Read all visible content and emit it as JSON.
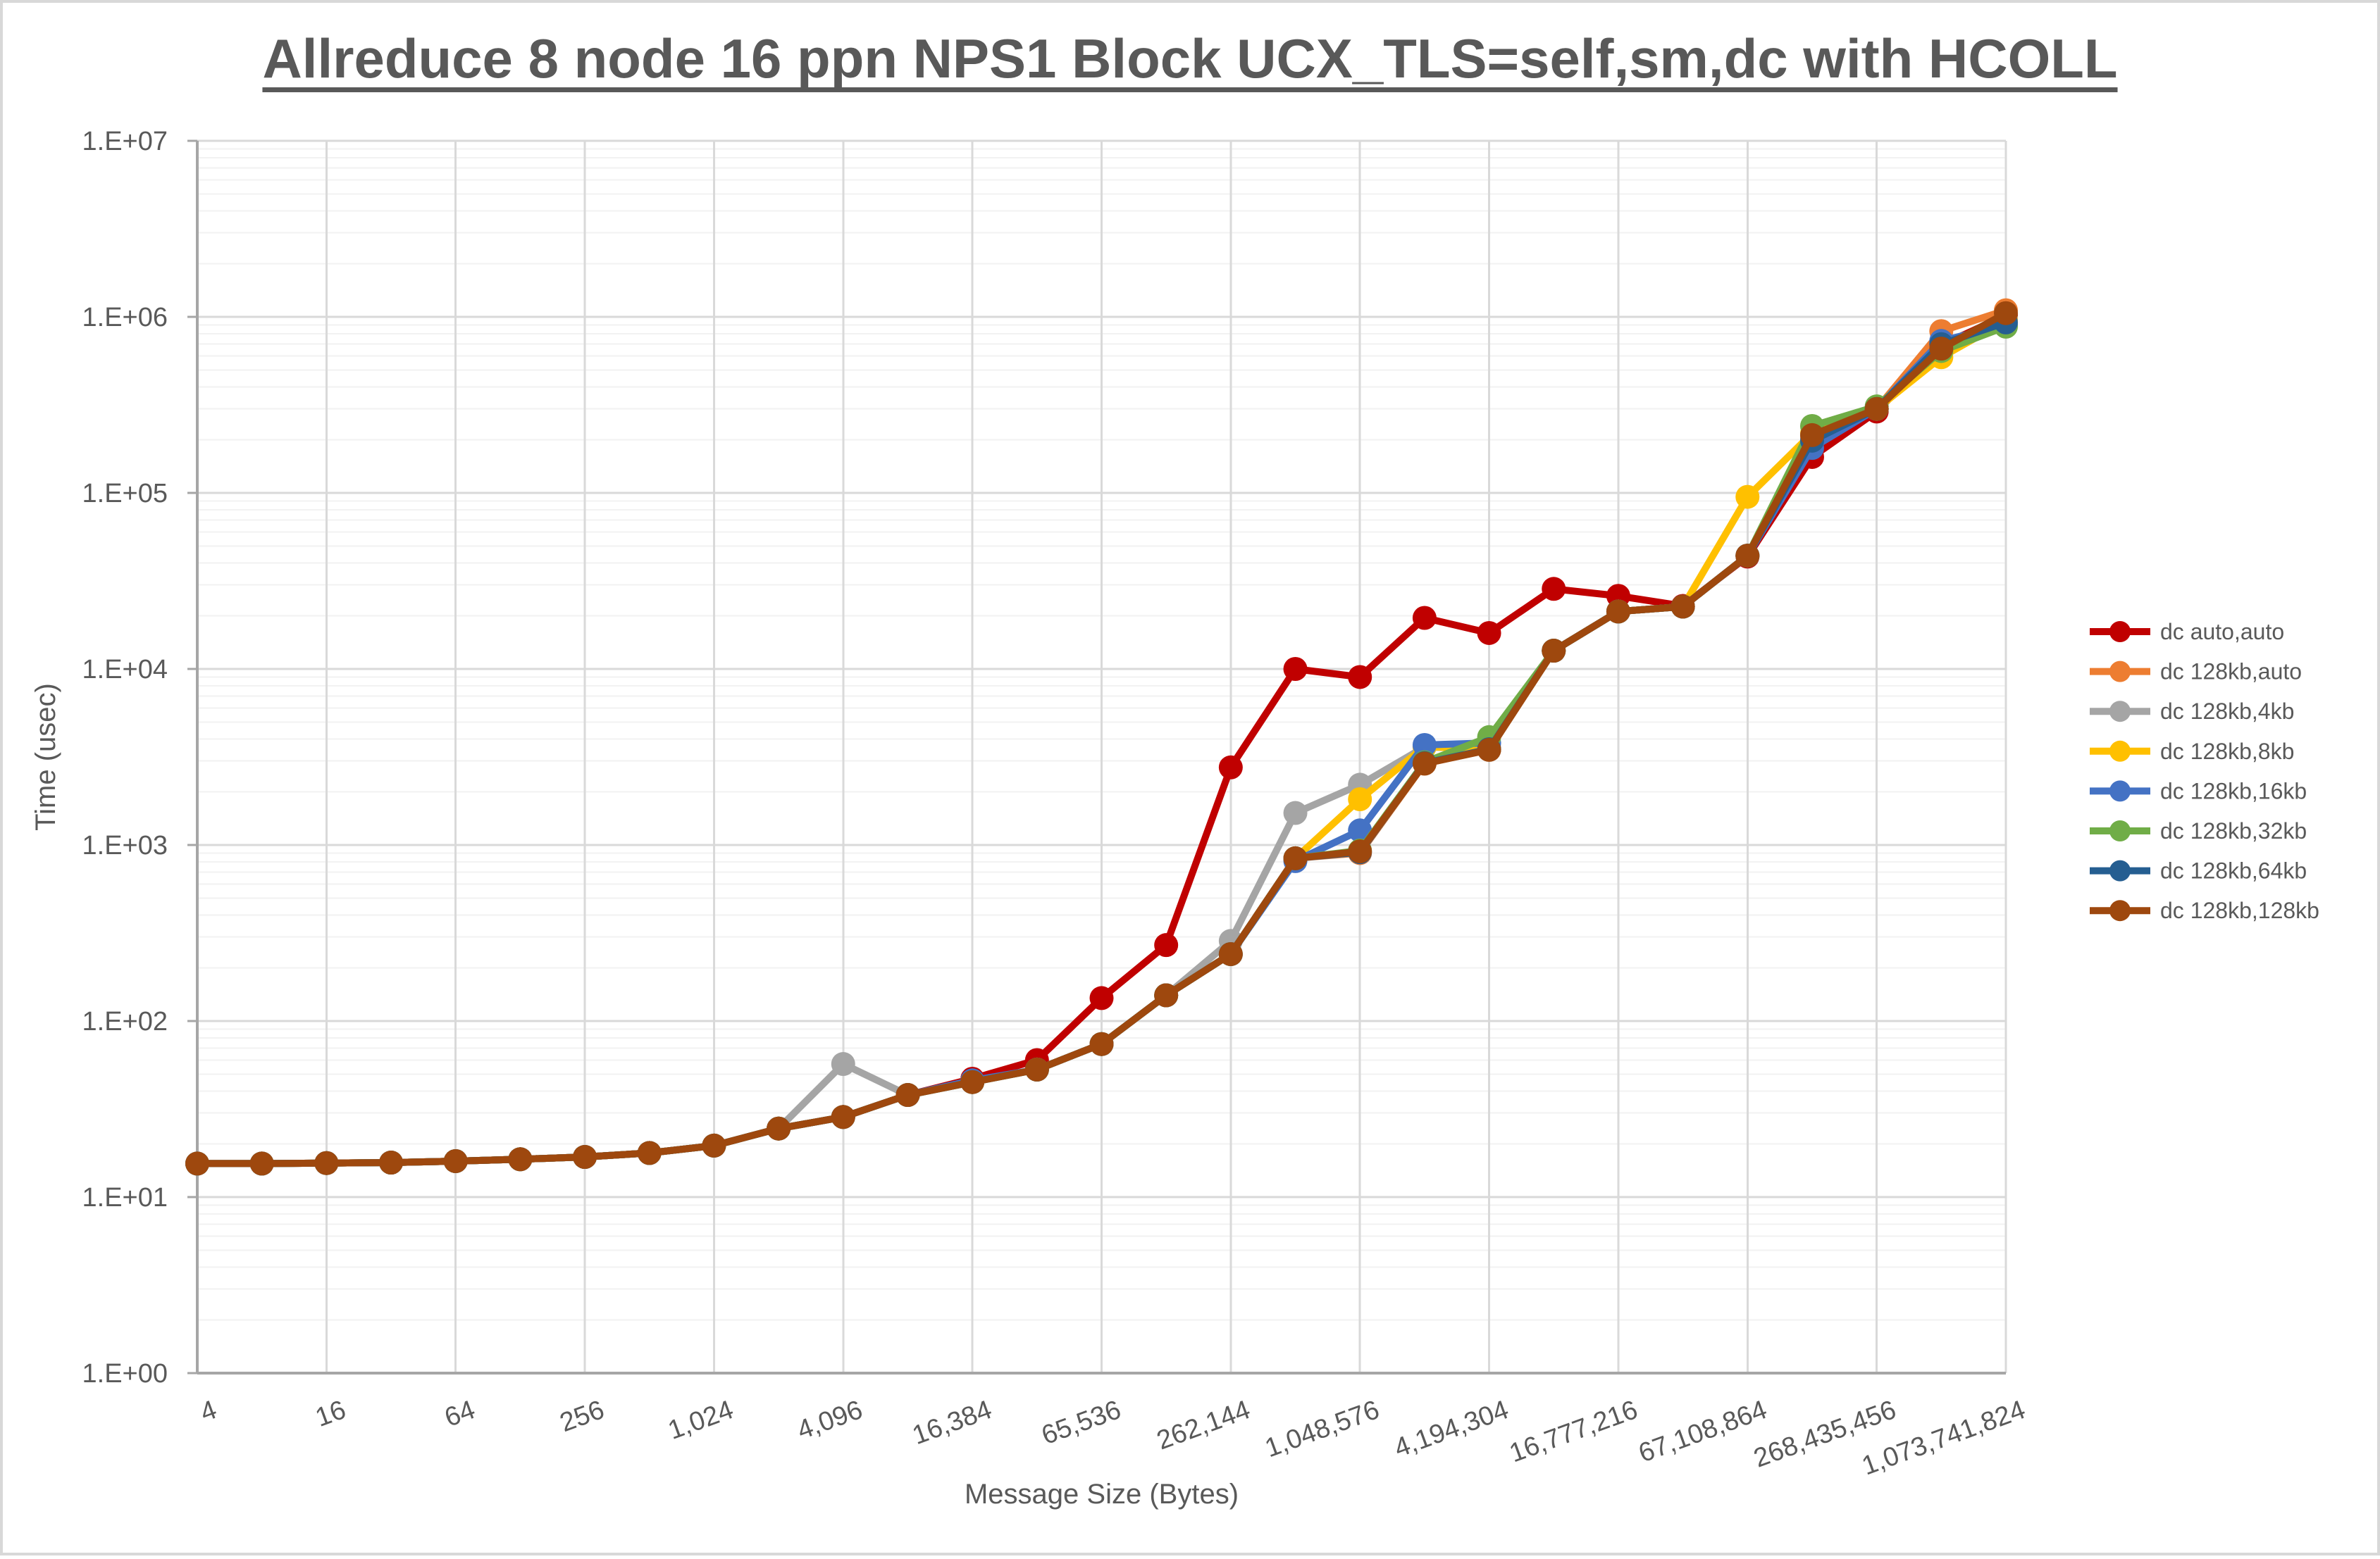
{
  "title": "Allreduce 8 node 16 ppn NPS1 Block UCX_TLS=self,sm,dc with HCOLL",
  "axes": {
    "x_title": "Message Size (Bytes)",
    "y_title": "Time (usec)",
    "y_tick_labels": [
      "1.E+00",
      "1.E+01",
      "1.E+02",
      "1.E+03",
      "1.E+04",
      "1.E+05",
      "1.E+06",
      "1.E+07"
    ],
    "x_tick_labels": [
      "4",
      "16",
      "64",
      "256",
      "1,024",
      "4,096",
      "16,384",
      "65,536",
      "262,144",
      "1,048,576",
      "4,194,304",
      "16,777,216",
      "67,108,864",
      "268,435,456",
      "1,073,741,824"
    ]
  },
  "chart_data": {
    "type": "line",
    "title": "Allreduce 8 node 16 ppn NPS1 Block UCX_TLS=self,sm,dc with HCOLL",
    "xlabel": "Message Size (Bytes)",
    "ylabel": "Time (usec)",
    "x": [
      4,
      8,
      16,
      32,
      64,
      128,
      256,
      512,
      1024,
      2048,
      4096,
      8192,
      16384,
      32768,
      65536,
      131072,
      262144,
      524288,
      1048576,
      2097152,
      4194304,
      8388608,
      16777216,
      33554432,
      67108864,
      134217728,
      268435456,
      536870912,
      1073741824
    ],
    "x_scale": "log",
    "y_scale": "log",
    "ylim": [
      1,
      10000000
    ],
    "grid": "major-and-minor-log",
    "legend_position": "right",
    "series": [
      {
        "name": "dc auto,auto",
        "color": "#C00000",
        "values": [
          15.5,
          15.5,
          15.6,
          15.7,
          16.0,
          16.4,
          16.9,
          17.8,
          19.6,
          24.5,
          28.5,
          38,
          47,
          60,
          135,
          270,
          2760,
          10000,
          9000,
          19500,
          16000,
          28500,
          26000,
          22800,
          43500,
          160000,
          290000,
          690000,
          1020000
        ]
      },
      {
        "name": "dc 128kb,auto",
        "color": "#ED7D31",
        "values": [
          15.5,
          15.5,
          15.6,
          15.7,
          16.0,
          16.4,
          16.9,
          17.8,
          19.6,
          24.5,
          28.5,
          38,
          45,
          53,
          74,
          140,
          240,
          840,
          900,
          2900,
          3480,
          12700,
          21200,
          22600,
          44000,
          208000,
          300000,
          830000,
          1090000
        ]
      },
      {
        "name": "dc 128kb,4kb",
        "color": "#A5A5A5",
        "values": [
          15.5,
          15.5,
          15.6,
          15.7,
          16.0,
          16.4,
          16.9,
          17.8,
          19.6,
          24.5,
          57,
          38,
          45,
          53,
          74,
          140,
          285,
          1520,
          2200,
          3600,
          3550,
          12700,
          21200,
          22600,
          44000,
          205000,
          300000,
          650000,
          980000
        ]
      },
      {
        "name": "dc 128kb,8kb",
        "color": "#FFC000",
        "values": [
          15.5,
          15.5,
          15.6,
          15.7,
          16.0,
          16.4,
          16.9,
          17.8,
          19.6,
          24.5,
          28.5,
          38,
          45,
          53,
          74,
          140,
          240,
          840,
          1820,
          3620,
          3500,
          12700,
          21200,
          22600,
          95000,
          218000,
          300000,
          590000,
          950000
        ]
      },
      {
        "name": "dc 128kb,16kb",
        "color": "#4472C4",
        "values": [
          15.5,
          15.5,
          15.6,
          15.7,
          16.0,
          16.4,
          16.9,
          17.8,
          19.6,
          24.5,
          28.5,
          38,
          46,
          53,
          74,
          140,
          240,
          810,
          1210,
          3700,
          3800,
          12700,
          21200,
          22600,
          44000,
          180000,
          300000,
          730000,
          900000
        ]
      },
      {
        "name": "dc 128kb,32kb",
        "color": "#70AD47",
        "values": [
          15.5,
          15.5,
          15.6,
          15.7,
          16.0,
          16.4,
          16.9,
          17.8,
          19.6,
          24.5,
          28.5,
          38,
          45,
          53,
          74,
          140,
          240,
          840,
          930,
          2950,
          4100,
          12700,
          21200,
          22600,
          44000,
          240000,
          310000,
          640000,
          880000
        ]
      },
      {
        "name": "dc 128kb,64kb",
        "color": "#255E91",
        "values": [
          15.5,
          15.5,
          15.6,
          15.7,
          16.0,
          16.4,
          16.9,
          17.8,
          19.6,
          24.5,
          28.5,
          38,
          45,
          53,
          74,
          140,
          240,
          840,
          910,
          2920,
          3500,
          12700,
          21200,
          22600,
          44000,
          198000,
          300000,
          700000,
          930000
        ]
      },
      {
        "name": "dc 128kb,128kb",
        "color": "#9E480E",
        "values": [
          15.5,
          15.5,
          15.6,
          15.7,
          16.0,
          16.4,
          16.9,
          17.8,
          19.6,
          24.5,
          28.5,
          38,
          45,
          53,
          74,
          140,
          240,
          840,
          920,
          2900,
          3470,
          12700,
          21200,
          22600,
          44000,
          213000,
          300000,
          660000,
          1050000
        ]
      }
    ]
  },
  "style": {
    "text_color": "#595959",
    "major_grid_color": "#D9D9D9",
    "minor_grid_color": "#F2F2F2",
    "axis_color": "#A6A6A6",
    "frame_color": "#D8D8D8"
  }
}
